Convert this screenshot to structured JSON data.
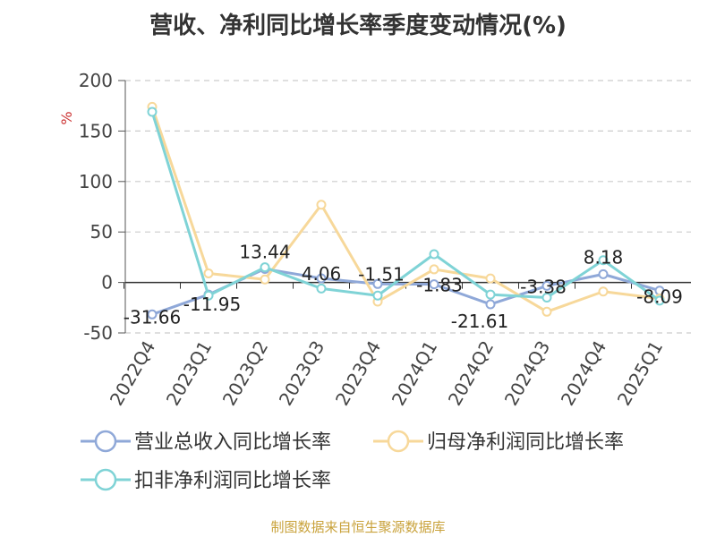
{
  "title": "营收、净利同比增长率季度变动情况(%)",
  "source": "制图数据来自恒生聚源数据库",
  "chart_data": {
    "type": "line",
    "ylabel": "%",
    "ylim": [
      -50,
      200
    ],
    "yticks": [
      200,
      150,
      100,
      50,
      0,
      -50
    ],
    "grid": true,
    "legend_position": "bottom",
    "categories": [
      "2022Q4",
      "2023Q1",
      "2023Q2",
      "2023Q3",
      "2023Q4",
      "2024Q1",
      "2024Q2",
      "2024Q3",
      "2024Q4",
      "2025Q1"
    ],
    "series": [
      {
        "name": "营业总收入同比增长率",
        "color": "#8fa8d8",
        "values": [
          -31.66,
          -11.95,
          13.44,
          4.06,
          -1.51,
          -1.83,
          -21.61,
          -3.38,
          8.18,
          -8.09
        ],
        "labels": [
          "-31.66",
          "-11.95",
          "13.44",
          "4.06",
          "-1.51",
          "-1.83",
          "-21.61",
          "-3.38",
          "8.18",
          "-8.09"
        ]
      },
      {
        "name": "归母净利润同比增长率",
        "color": "#f7d89a",
        "values": [
          174,
          9,
          3,
          77,
          -19,
          13,
          4,
          -29,
          -9,
          -16
        ]
      },
      {
        "name": "扣非净利润同比增长率",
        "color": "#7fd3d6",
        "values": [
          169,
          -13,
          15,
          -6,
          -13,
          28,
          -12,
          -15,
          22,
          -18
        ]
      }
    ]
  }
}
